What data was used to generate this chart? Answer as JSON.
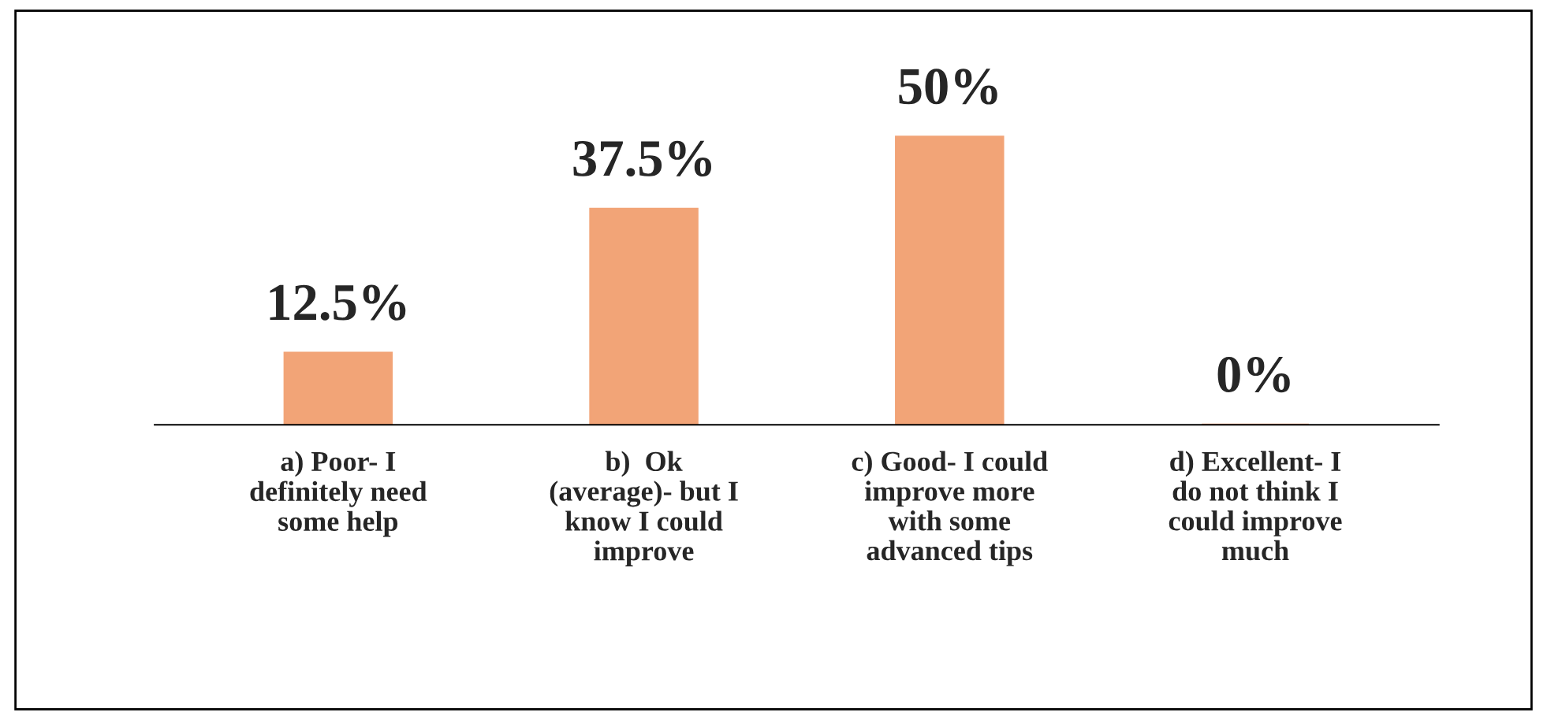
{
  "chart_data": {
    "type": "bar",
    "categories": [
      "a) Poor- I\ndefinitely need\nsome help",
      "b)  Ok\n(average)- but I\nknow I could\nimprove",
      "c) Good- I could\nimprove more\nwith some\nadvanced tips",
      "d) Excellent- I\ndo not think I\ncould improve\nmuch"
    ],
    "values": [
      12.5,
      37.5,
      50,
      0
    ],
    "value_labels": [
      "12.5%",
      "37.5%",
      "50%",
      "0%"
    ],
    "color": "#f2a477",
    "grid": false,
    "legend": false
  }
}
